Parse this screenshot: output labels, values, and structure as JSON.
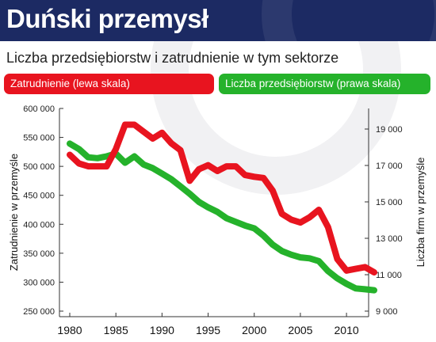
{
  "header": {
    "title": "Duński przemysł"
  },
  "chart_data": {
    "type": "line",
    "subtitle": "Liczba przedsiębiorstw i zatrudnienie w tym sektorze",
    "ylabel_left": "Zatrudnienie w przemyśle",
    "ylabel_right": "Liczba firm w przemyśle",
    "xlim": [
      1980,
      2013
    ],
    "ylim_left": [
      250000,
      600000
    ],
    "ylim_right": [
      9000,
      19000
    ],
    "x_ticks": [
      "1980",
      "1985",
      "1990",
      "1995",
      "2000",
      "2005",
      "2010"
    ],
    "y_ticks_left": [
      "250 000",
      "300 000",
      "350 000",
      "400 000",
      "450 000",
      "500 000",
      "550 000",
      "600 000"
    ],
    "y_ticks_right": [
      "9 000",
      "11 000",
      "13 000",
      "15 000",
      "17 000",
      "19 000"
    ],
    "legend_placement": "top",
    "grid": false,
    "series": [
      {
        "name": "Zatrudnienie (lewa skala)",
        "axis": "left",
        "color": "#e8141f",
        "x": [
          1980,
          1981,
          1982,
          1983,
          1984,
          1985,
          1986,
          1987,
          1988,
          1989,
          1990,
          1991,
          1992,
          1993,
          1994,
          1995,
          1996,
          1997,
          1998,
          1999,
          2000,
          2001,
          2002,
          2003,
          2004,
          2005,
          2006,
          2007,
          2008,
          2009,
          2010,
          2011,
          2012,
          2013
        ],
        "values": [
          520000,
          505000,
          500000,
          500000,
          500000,
          530000,
          572000,
          572000,
          560000,
          548000,
          558000,
          540000,
          528000,
          475000,
          495000,
          502000,
          492000,
          500000,
          500000,
          485000,
          482000,
          480000,
          458000,
          418000,
          408000,
          403000,
          412000,
          425000,
          395000,
          340000,
          320000,
          323000,
          326000,
          317000
        ]
      },
      {
        "name": "Liczba przedsiębiorstw (prawa skala)",
        "axis": "right",
        "color": "#25b22b",
        "x": [
          1980,
          1981,
          1982,
          1983,
          1984,
          1985,
          1986,
          1987,
          1988,
          1989,
          1990,
          1991,
          1992,
          1993,
          1994,
          1995,
          1996,
          1997,
          1998,
          1999,
          2000,
          2001,
          2002,
          2003,
          2004,
          2005,
          2006,
          2007,
          2008,
          2009,
          2010,
          2011,
          2012,
          2013
        ],
        "values": [
          18200,
          17900,
          17450,
          17400,
          17500,
          17650,
          17150,
          17500,
          17050,
          16850,
          16550,
          16250,
          15850,
          15450,
          15000,
          14700,
          14450,
          14100,
          13900,
          13700,
          13550,
          13150,
          12650,
          12300,
          12100,
          11950,
          11900,
          11750,
          11200,
          10800,
          10500,
          10250,
          10200,
          10150
        ]
      }
    ]
  }
}
